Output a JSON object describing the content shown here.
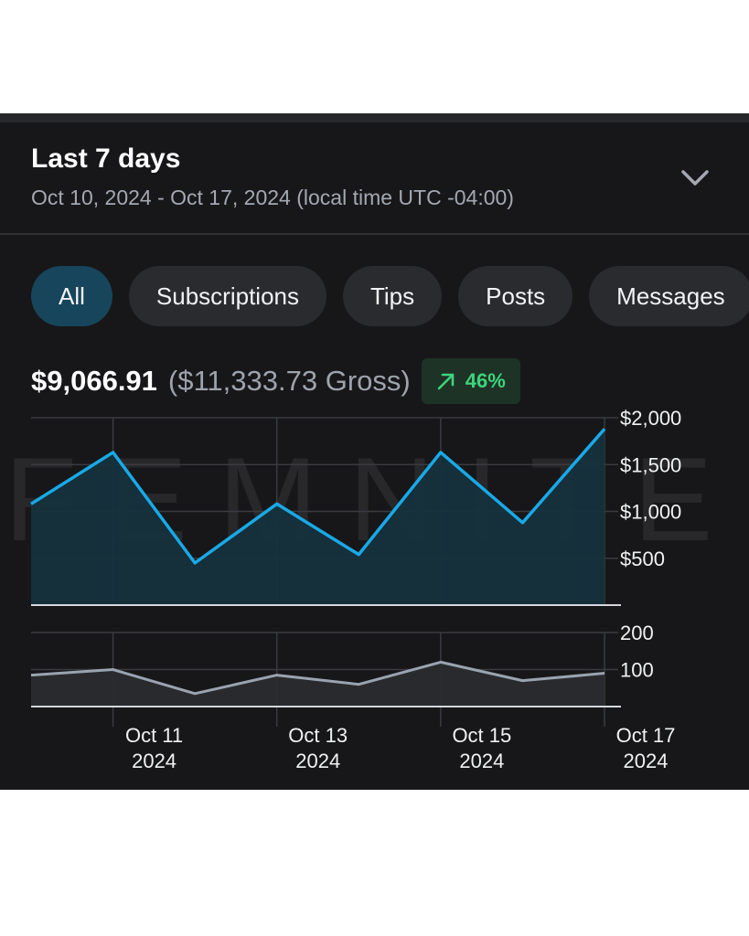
{
  "header": {
    "title": "Last 7 days",
    "date_range": "Oct 10, 2024 - Oct 17, 2024 (local time UTC -04:00)"
  },
  "tabs": [
    {
      "label": "All",
      "active": true
    },
    {
      "label": "Subscriptions",
      "active": false
    },
    {
      "label": "Tips",
      "active": false
    },
    {
      "label": "Posts",
      "active": false
    },
    {
      "label": "Messages",
      "active": false
    }
  ],
  "summary": {
    "net": "$9,066.91",
    "gross": "($11,333.73 Gross)",
    "change": "46%",
    "change_icon": "arrow-up-right-icon",
    "change_color": "#3ed37c"
  },
  "watermark": "FEMNITE",
  "colors": {
    "earnings_line": "#19a9e6",
    "earnings_fill": "#15303d",
    "count_line": "#9aa3b0",
    "count_fill": "#2a2b2e",
    "background": "#171719"
  },
  "chart_data": [
    {
      "type": "area",
      "x": [
        "Oct 10, 2024",
        "Oct 11, 2024",
        "Oct 12, 2024",
        "Oct 13, 2024",
        "Oct 14, 2024",
        "Oct 15, 2024",
        "Oct 16, 2024",
        "Oct 17, 2024"
      ],
      "values": [
        1080,
        1630,
        450,
        1080,
        540,
        1630,
        880,
        1880
      ],
      "ylim": [
        0,
        2000
      ],
      "y_ticks": [
        "$2,000",
        "$1,500",
        "$1,000",
        "$500"
      ],
      "y_tick_values": [
        2000,
        1500,
        1000,
        500
      ],
      "grid": true
    },
    {
      "type": "area",
      "x": [
        "Oct 10, 2024",
        "Oct 11, 2024",
        "Oct 12, 2024",
        "Oct 13, 2024",
        "Oct 14, 2024",
        "Oct 15, 2024",
        "Oct 16, 2024",
        "Oct 17, 2024"
      ],
      "values": [
        85,
        100,
        35,
        85,
        60,
        120,
        70,
        90
      ],
      "ylim": [
        0,
        200
      ],
      "y_ticks": [
        "200",
        "100"
      ],
      "y_tick_values": [
        200,
        100
      ],
      "grid": true,
      "x_ticks": [
        {
          "index": 1,
          "label": "Oct 11",
          "year": "2024"
        },
        {
          "index": 3,
          "label": "Oct 13",
          "year": "2024"
        },
        {
          "index": 5,
          "label": "Oct 15",
          "year": "2024"
        },
        {
          "index": 7,
          "label": "Oct 17",
          "year": "2024"
        }
      ]
    }
  ]
}
